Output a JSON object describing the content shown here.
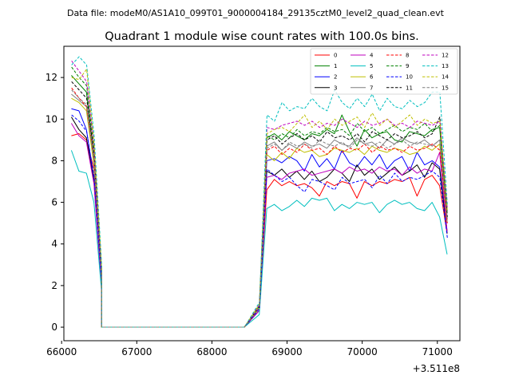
{
  "suptitle": "Data file: modeM0/AS1A10_099T01_9000004184_29135cztM0_level2_quad_clean.evt",
  "chart_data": {
    "type": "line",
    "title": "Quadrant 1 module wise count rates with 100.0s bins.",
    "xlabel": "",
    "ylabel": "",
    "x_offset_label": "+3.511e8",
    "xlim": [
      66030,
      71300
    ],
    "ylim": [
      -0.65,
      13.5
    ],
    "xticks": [
      66000,
      67000,
      68000,
      69000,
      70000,
      71000
    ],
    "xtick_labels": [
      "66000",
      "67000",
      "68000",
      "69000",
      "70000",
      "71000"
    ],
    "yticks": [
      0,
      2,
      4,
      6,
      8,
      10,
      12
    ],
    "ytick_labels": [
      "0",
      "2",
      "4",
      "6",
      "8",
      "10",
      "12"
    ],
    "legend_position": "upper right",
    "segments": [
      {
        "x_start": 66130,
        "step": 100,
        "count": 5
      },
      {
        "x_start": 66530,
        "step": 100,
        "count": 20
      },
      {
        "x_start": 68630,
        "step": 100,
        "count": 26
      }
    ],
    "series": [
      {
        "name": "0",
        "color": "#ff0000",
        "dash": "solid",
        "gap": 0,
        "values": [
          9.2,
          9.3,
          9.0,
          7.6,
          2.0,
          0,
          0,
          0,
          0,
          0,
          0,
          0,
          0,
          0,
          0,
          0,
          0,
          0,
          0,
          0,
          0,
          0,
          0,
          0,
          0,
          0.8,
          6.6,
          7.1,
          6.8,
          7.0,
          6.8,
          6.9,
          6.7,
          6.3,
          7.0,
          6.8,
          7.0,
          6.9,
          6.2,
          7.0,
          6.8,
          7.0,
          6.9,
          7.1,
          7.0,
          7.2,
          6.3,
          7.1,
          7.3,
          6.8,
          4.5
        ]
      },
      {
        "name": "1",
        "color": "#008000",
        "dash": "solid",
        "gap": 0,
        "values": [
          12.1,
          11.7,
          11.3,
          8.2,
          2.6,
          0,
          0,
          0,
          0,
          0,
          0,
          0,
          0,
          0,
          0,
          0,
          0,
          0,
          0,
          0,
          0,
          0,
          0,
          0,
          0,
          1.0,
          9.1,
          9.3,
          9.0,
          9.4,
          9.2,
          9.0,
          9.3,
          9.2,
          9.5,
          9.3,
          10.2,
          9.4,
          8.7,
          9.5,
          9.1,
          9.3,
          9.4,
          9.0,
          8.9,
          9.4,
          9.3,
          9.2,
          9.5,
          9.6,
          5.5
        ]
      },
      {
        "name": "2",
        "color": "#0000ff",
        "dash": "solid",
        "gap": 0,
        "values": [
          10.5,
          10.4,
          9.5,
          7.1,
          2.1,
          0,
          0,
          0,
          0,
          0,
          0,
          0,
          0,
          0,
          0,
          0,
          0,
          0,
          0,
          0,
          0,
          0,
          0,
          0,
          0,
          0.9,
          8.0,
          8.1,
          7.9,
          8.2,
          8.0,
          7.5,
          8.3,
          7.7,
          8.1,
          7.6,
          8.5,
          7.9,
          7.7,
          8.2,
          7.8,
          8.3,
          7.6,
          8.0,
          8.2,
          7.5,
          8.4,
          7.8,
          8.0,
          7.7,
          4.6
        ]
      },
      {
        "name": "3",
        "color": "#000000",
        "dash": "solid",
        "gap": 0,
        "values": [
          10.1,
          9.5,
          9.1,
          7.0,
          2.1,
          0,
          0,
          0,
          0,
          0,
          0,
          0,
          0,
          0,
          0,
          0,
          0,
          0,
          0,
          0,
          0,
          0,
          0,
          0,
          0,
          0.8,
          7.5,
          7.3,
          7.6,
          7.2,
          7.5,
          7.1,
          7.5,
          7.0,
          7.2,
          7.6,
          7.4,
          7.0,
          7.8,
          7.3,
          7.6,
          7.1,
          7.4,
          7.7,
          7.3,
          7.5,
          7.8,
          7.2,
          7.9,
          7.6,
          4.5
        ]
      },
      {
        "name": "4",
        "color": "#bf00bf",
        "dash": "solid",
        "gap": 0,
        "values": [
          9.8,
          9.2,
          8.9,
          6.9,
          2.0,
          0,
          0,
          0,
          0,
          0,
          0,
          0,
          0,
          0,
          0,
          0,
          0,
          0,
          0,
          0,
          0,
          0,
          0,
          0,
          0,
          0.8,
          7.2,
          7.3,
          7.1,
          7.4,
          7.5,
          7.6,
          7.3,
          7.4,
          7.5,
          7.6,
          7.4,
          7.7,
          7.5,
          7.6,
          7.4,
          7.7,
          7.5,
          7.6,
          7.3,
          7.7,
          7.4,
          7.6,
          7.5,
          8.4,
          4.6
        ]
      },
      {
        "name": "5",
        "color": "#00bfbf",
        "dash": "solid",
        "gap": 0,
        "values": [
          8.5,
          7.5,
          7.4,
          6.0,
          1.8,
          0,
          0,
          0,
          0,
          0,
          0,
          0,
          0,
          0,
          0,
          0,
          0,
          0,
          0,
          0,
          0,
          0,
          0,
          0,
          0,
          0.6,
          5.7,
          5.9,
          5.6,
          5.8,
          6.1,
          5.8,
          6.2,
          6.1,
          6.2,
          5.6,
          5.9,
          5.7,
          6.0,
          5.9,
          6.0,
          5.5,
          5.9,
          6.1,
          5.9,
          6.0,
          5.7,
          5.6,
          6.0,
          5.3,
          3.5
        ]
      },
      {
        "name": "6",
        "color": "#bfbf00",
        "dash": "solid",
        "gap": 0,
        "values": [
          11.0,
          10.8,
          10.4,
          7.8,
          2.4,
          0,
          0,
          0,
          0,
          0,
          0,
          0,
          0,
          0,
          0,
          0,
          0,
          0,
          0,
          0,
          0,
          0,
          0,
          0,
          0,
          0.9,
          8.3,
          8.0,
          8.4,
          8.1,
          8.6,
          8.4,
          8.5,
          8.2,
          8.3,
          8.6,
          8.5,
          8.4,
          8.6,
          8.3,
          8.7,
          8.5,
          8.4,
          8.6,
          8.5,
          8.3,
          8.4,
          8.7,
          8.5,
          8.8,
          5.0
        ]
      },
      {
        "name": "7",
        "color": "#7f7f7f",
        "dash": "solid",
        "gap": 0,
        "values": [
          11.2,
          10.9,
          10.6,
          8.0,
          2.5,
          0,
          0,
          0,
          0,
          0,
          0,
          0,
          0,
          0,
          0,
          0,
          0,
          0,
          0,
          0,
          0,
          0,
          0,
          0,
          0,
          1.0,
          8.7,
          8.9,
          8.5,
          8.8,
          8.6,
          8.9,
          8.7,
          8.8,
          8.6,
          9.0,
          8.8,
          8.7,
          9.1,
          8.8,
          8.9,
          8.6,
          9.0,
          8.8,
          9.1,
          8.9,
          8.8,
          9.0,
          8.7,
          9.0,
          5.1
        ]
      },
      {
        "name": "8",
        "color": "#ff0000",
        "dash": "dashed",
        "gap": 3,
        "values": [
          11.5,
          11.0,
          10.6,
          8.1,
          2.5,
          0,
          0,
          0,
          0,
          0,
          0,
          0,
          0,
          0,
          0,
          0,
          0,
          0,
          0,
          0,
          0,
          0,
          0,
          0,
          0,
          1.0,
          8.5,
          8.7,
          8.3,
          8.6,
          8.4,
          8.8,
          8.5,
          8.6,
          8.3,
          8.7,
          8.4,
          8.6,
          8.5,
          8.8,
          8.4,
          8.7,
          8.5,
          8.6,
          8.4,
          8.7,
          8.5,
          8.6,
          8.8,
          8.5,
          5.0
        ]
      },
      {
        "name": "9",
        "color": "#008000",
        "dash": "dashed",
        "gap": 3,
        "values": [
          12.5,
          12.0,
          11.6,
          8.5,
          2.7,
          0,
          0,
          0,
          0,
          0,
          0,
          0,
          0,
          0,
          0,
          0,
          0,
          0,
          0,
          0,
          0,
          0,
          0,
          0,
          0,
          1.1,
          9.2,
          9.0,
          9.3,
          9.1,
          9.5,
          9.2,
          9.4,
          9.3,
          9.6,
          9.4,
          9.5,
          9.2,
          9.8,
          9.4,
          9.6,
          9.3,
          9.5,
          9.7,
          9.4,
          9.6,
          9.5,
          9.8,
          9.4,
          9.7,
          5.6
        ]
      },
      {
        "name": "10",
        "color": "#0000ff",
        "dash": "dashed",
        "gap": 3,
        "values": [
          10.2,
          9.9,
          9.4,
          7.2,
          2.2,
          0,
          0,
          0,
          0,
          0,
          0,
          0,
          0,
          0,
          0,
          0,
          0,
          0,
          0,
          0,
          0,
          0,
          0,
          0,
          0,
          0.9,
          7.6,
          7.3,
          7.0,
          7.2,
          6.8,
          6.5,
          7.1,
          7.0,
          6.8,
          6.6,
          7.2,
          6.9,
          7.0,
          7.1,
          6.7,
          7.3,
          6.9,
          7.4,
          7.0,
          7.2,
          7.1,
          7.3,
          7.5,
          7.2,
          4.3
        ]
      },
      {
        "name": "11",
        "color": "#000000",
        "dash": "dashed",
        "gap": 3,
        "values": [
          11.8,
          11.4,
          11.0,
          8.3,
          2.6,
          0,
          0,
          0,
          0,
          0,
          0,
          0,
          0,
          0,
          0,
          0,
          0,
          0,
          0,
          0,
          0,
          0,
          0,
          0,
          0,
          1.0,
          9.0,
          9.2,
          8.8,
          9.1,
          9.3,
          9.0,
          9.2,
          8.9,
          9.4,
          9.1,
          9.2,
          9.0,
          9.3,
          8.9,
          9.4,
          9.2,
          9.0,
          9.3,
          9.1,
          9.2,
          9.4,
          9.1,
          9.3,
          10.1,
          5.3
        ]
      },
      {
        "name": "12",
        "color": "#bf00bf",
        "dash": "dashed",
        "gap": 3,
        "values": [
          12.8,
          12.3,
          11.8,
          8.7,
          2.8,
          0,
          0,
          0,
          0,
          0,
          0,
          0,
          0,
          0,
          0,
          0,
          0,
          0,
          0,
          0,
          0,
          0,
          0,
          0,
          0,
          1.1,
          9.6,
          9.5,
          9.7,
          9.8,
          9.9,
          9.7,
          9.9,
          9.6,
          9.8,
          9.7,
          10.0,
          9.8,
          9.6,
          9.9,
          9.7,
          9.8,
          10.0,
          9.7,
          9.8,
          9.6,
          9.9,
          9.8,
          9.7,
          9.9,
          5.7
        ]
      },
      {
        "name": "13",
        "color": "#00bfbf",
        "dash": "dashed",
        "gap": 3,
        "values": [
          12.6,
          13.0,
          12.6,
          9.2,
          3.0,
          0,
          0,
          0,
          0,
          0,
          0,
          0,
          0,
          0,
          0,
          0,
          0,
          0,
          0,
          0,
          0,
          0,
          0,
          0,
          0,
          1.2,
          10.2,
          9.9,
          10.8,
          10.4,
          10.6,
          10.5,
          11.0,
          10.6,
          10.4,
          11.4,
          10.8,
          10.5,
          11.0,
          10.6,
          11.2,
          10.4,
          11.0,
          10.6,
          10.5,
          10.9,
          10.6,
          10.8,
          11.3,
          11.3,
          5.9
        ]
      },
      {
        "name": "14",
        "color": "#bfbf00",
        "dash": "dashed",
        "gap": 3,
        "values": [
          12.0,
          11.9,
          12.4,
          8.8,
          2.8,
          0,
          0,
          0,
          0,
          0,
          0,
          0,
          0,
          0,
          0,
          0,
          0,
          0,
          0,
          0,
          0,
          0,
          0,
          0,
          0,
          1.1,
          9.3,
          9.5,
          9.6,
          9.4,
          9.8,
          10.2,
          9.6,
          9.9,
          9.5,
          10.0,
          9.7,
          9.9,
          10.1,
          9.6,
          10.3,
          9.7,
          10.0,
          9.6,
          9.9,
          10.2,
          9.7,
          10.0,
          9.8,
          9.9,
          5.6
        ]
      },
      {
        "name": "15",
        "color": "#7f7f7f",
        "dash": "dashed",
        "gap": 3,
        "values": [
          11.4,
          11.0,
          10.7,
          8.1,
          2.5,
          0,
          0,
          0,
          0,
          0,
          0,
          0,
          0,
          0,
          0,
          0,
          0,
          0,
          0,
          0,
          0,
          0,
          0,
          0,
          0,
          1.0,
          8.6,
          8.8,
          8.5,
          8.9,
          8.7,
          8.8,
          8.6,
          9.0,
          8.8,
          8.7,
          8.9,
          8.6,
          9.0,
          8.8,
          8.7,
          8.9,
          8.6,
          8.8,
          9.0,
          8.7,
          8.9,
          8.8,
          8.7,
          9.0,
          5.2
        ]
      }
    ]
  }
}
